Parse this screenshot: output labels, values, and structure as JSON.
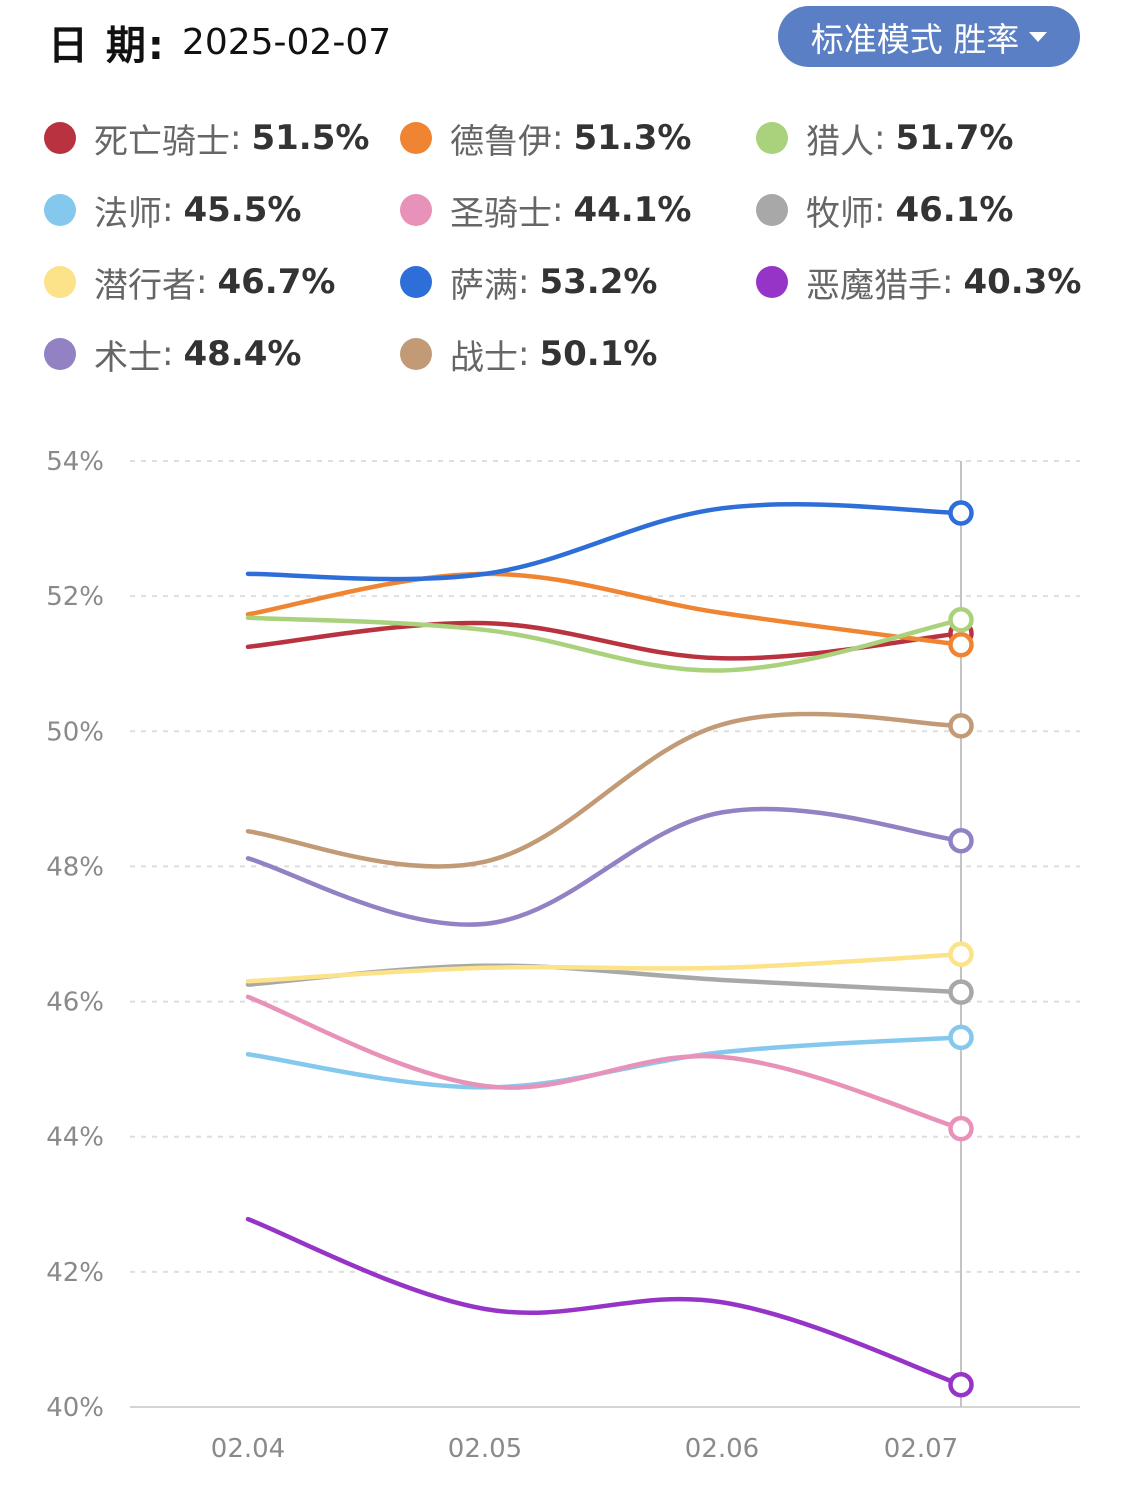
{
  "header": {
    "date_label": "日 期:",
    "date_value": "2025-02-07",
    "mode_label": "标准模式 胜率"
  },
  "chart_data": {
    "type": "line",
    "x": [
      "02.04",
      "02.05",
      "02.06",
      "02.07"
    ],
    "ylim": [
      40,
      54
    ],
    "yticks": [
      "54%",
      "52%",
      "50%",
      "48%",
      "46%",
      "44%",
      "42%",
      "40%"
    ],
    "grid": true,
    "legend_position": "top",
    "series": [
      {
        "name": "死亡骑士",
        "display": "51.5%",
        "color": "#b83240",
        "values": [
          51.25,
          51.6,
          51.08,
          51.45
        ]
      },
      {
        "name": "德鲁伊",
        "display": "51.3%",
        "color": "#ef8533",
        "values": [
          51.73,
          52.33,
          51.75,
          51.28
        ]
      },
      {
        "name": "猎人",
        "display": "51.7%",
        "color": "#aad17c",
        "values": [
          51.68,
          51.5,
          50.9,
          51.65
        ]
      },
      {
        "name": "法师",
        "display": "45.5%",
        "color": "#85c8ee",
        "values": [
          45.22,
          44.73,
          45.25,
          45.47
        ]
      },
      {
        "name": "圣骑士",
        "display": "44.1%",
        "color": "#e892b9",
        "values": [
          46.07,
          44.75,
          45.18,
          44.12
        ]
      },
      {
        "name": "牧师",
        "display": "46.1%",
        "color": "#a8a8a8",
        "values": [
          46.25,
          46.53,
          46.32,
          46.14
        ]
      },
      {
        "name": "潜行者",
        "display": "46.7%",
        "color": "#fce289",
        "values": [
          46.3,
          46.5,
          46.5,
          46.7
        ]
      },
      {
        "name": "萨满",
        "display": "53.2%",
        "color": "#2e6ed8",
        "values": [
          52.33,
          52.33,
          53.3,
          53.23
        ]
      },
      {
        "name": "恶魔猎手",
        "display": "40.3%",
        "color": "#9634c8",
        "values": [
          42.78,
          41.45,
          41.55,
          40.33
        ]
      },
      {
        "name": "术士",
        "display": "48.4%",
        "color": "#9282c4",
        "values": [
          48.12,
          47.15,
          48.8,
          48.38
        ]
      },
      {
        "name": "战士",
        "display": "50.1%",
        "color": "#c29b76",
        "values": [
          48.52,
          48.07,
          50.1,
          50.08
        ]
      }
    ]
  }
}
